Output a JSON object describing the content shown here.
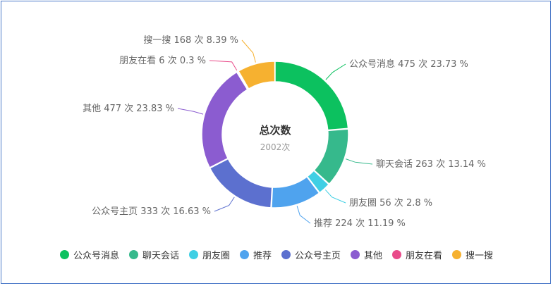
{
  "chart_data": {
    "type": "pie",
    "style": "donut",
    "center_title": "总次数",
    "center_subtitle": "2002次",
    "slices": [
      {
        "name": "公众号消息",
        "label": "公众号消息 475 次 23.73 %",
        "value": 475,
        "percent": 23.73,
        "color": "#0cc15f"
      },
      {
        "name": "聊天会话",
        "label": "聊天会话 263 次 13.14 %",
        "value": 263,
        "percent": 13.14,
        "color": "#36b98c"
      },
      {
        "name": "朋友圈",
        "label": "朋友圈 56 次 2.8 %",
        "value": 56,
        "percent": 2.8,
        "color": "#3fcfe4"
      },
      {
        "name": "推荐",
        "label": "推荐 224 次 11.19 %",
        "value": 224,
        "percent": 11.19,
        "color": "#4fa3ee"
      },
      {
        "name": "公众号主页",
        "label": "公众号主页 333 次 16.63 %",
        "value": 333,
        "percent": 16.63,
        "color": "#5c70cf"
      },
      {
        "name": "其他",
        "label": "其他 477 次 23.83 %",
        "value": 477,
        "percent": 23.83,
        "color": "#8b5cd0"
      },
      {
        "name": "朋友在看",
        "label": "朋友在看 6 次 0.3 %",
        "value": 6,
        "percent": 0.3,
        "color": "#e94b8a"
      },
      {
        "name": "搜一搜",
        "label": "搜一搜 168 次 8.39 %",
        "value": 168,
        "percent": 8.39,
        "color": "#f6b130"
      }
    ],
    "legend_position": "bottom"
  }
}
